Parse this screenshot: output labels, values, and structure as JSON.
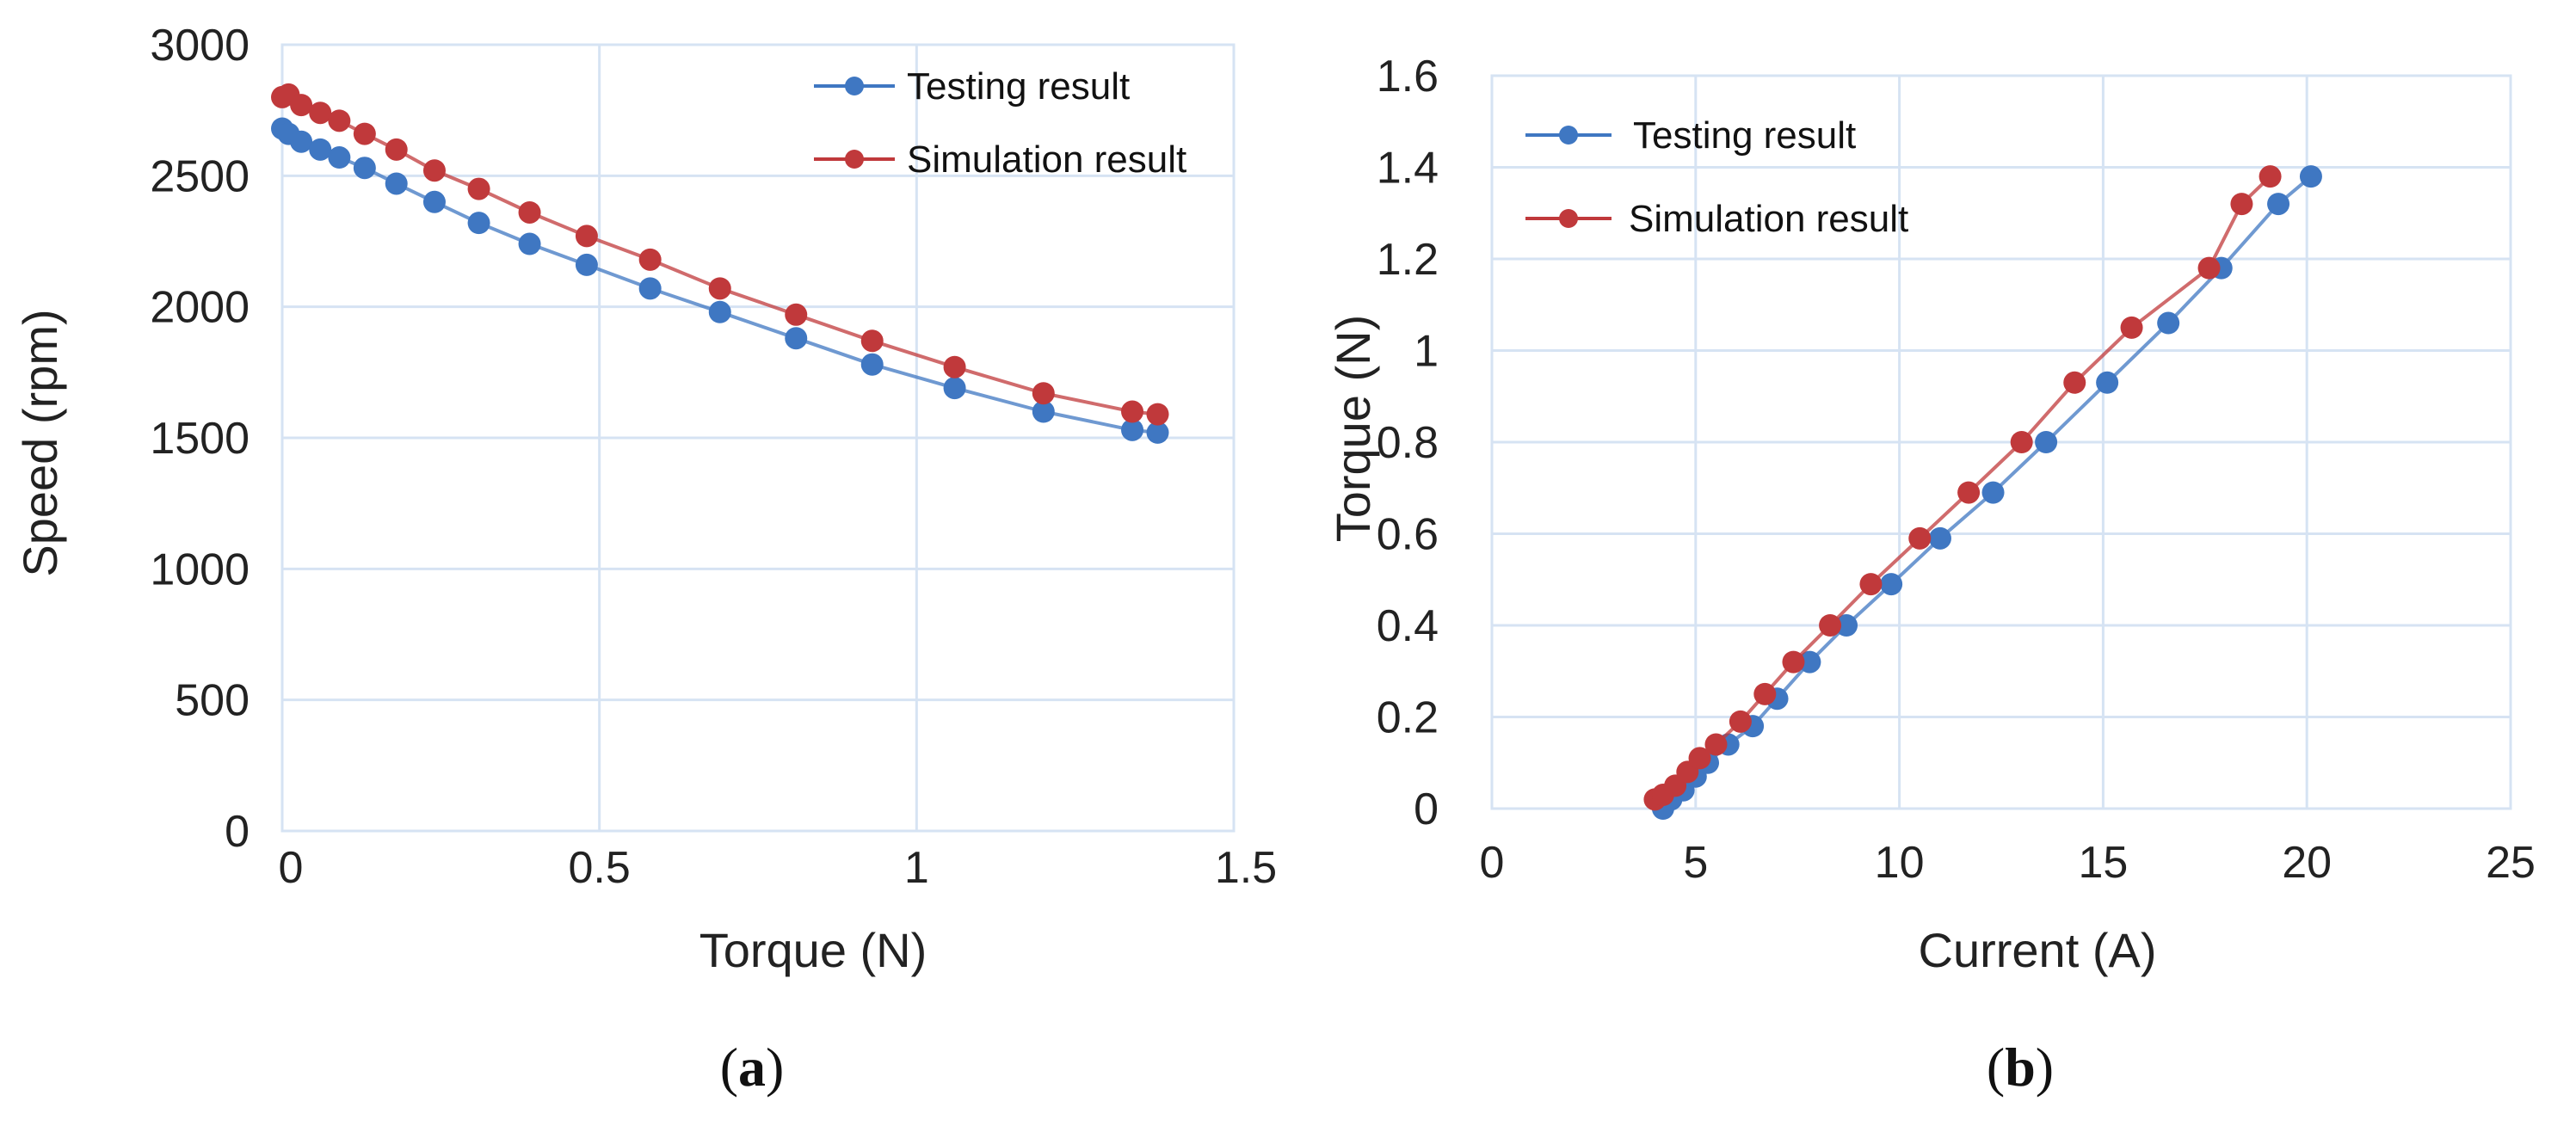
{
  "colors": {
    "testing": "#3f77c2",
    "simulation": "#c0393b",
    "grid": "#d6e3f3"
  },
  "chart_data": [
    {
      "type": "line",
      "panel": "a",
      "caption_letter": "a",
      "xlabel": "Torque (N)",
      "ylabel": "Speed  (rpm)",
      "xlim": [
        0,
        1.5
      ],
      "ylim": [
        0,
        3000
      ],
      "xticks": [
        "0",
        "0.5",
        "1",
        "1.5"
      ],
      "yticks": [
        "0",
        "500",
        "1000",
        "1500",
        "2000",
        "2500",
        "3000"
      ],
      "legend_position": "top-right",
      "grid": true,
      "series": [
        {
          "name": "Testing result",
          "x": [
            0.0,
            0.01,
            0.03,
            0.06,
            0.09,
            0.13,
            0.18,
            0.24,
            0.31,
            0.39,
            0.48,
            0.58,
            0.69,
            0.81,
            0.93,
            1.06,
            1.2,
            1.34,
            1.38
          ],
          "y": [
            2680,
            2660,
            2630,
            2600,
            2570,
            2530,
            2470,
            2400,
            2320,
            2240,
            2160,
            2070,
            1980,
            1880,
            1780,
            1690,
            1600,
            1530,
            1520
          ]
        },
        {
          "name": "Simulation result",
          "x": [
            0.0,
            0.01,
            0.03,
            0.06,
            0.09,
            0.13,
            0.18,
            0.24,
            0.31,
            0.39,
            0.48,
            0.58,
            0.69,
            0.81,
            0.93,
            1.06,
            1.2,
            1.34,
            1.38
          ],
          "y": [
            2800,
            2810,
            2770,
            2740,
            2710,
            2660,
            2600,
            2520,
            2450,
            2360,
            2270,
            2180,
            2070,
            1970,
            1870,
            1770,
            1670,
            1600,
            1590
          ]
        }
      ]
    },
    {
      "type": "line",
      "panel": "b",
      "caption_letter": "b",
      "xlabel": "Current (A)",
      "ylabel": "Torque (N)",
      "xlim": [
        0,
        25
      ],
      "ylim": [
        0,
        1.6
      ],
      "xticks": [
        "0",
        "5",
        "10",
        "15",
        "20",
        "25"
      ],
      "yticks": [
        "0",
        "0.2",
        "0.4",
        "0.6",
        "0.8",
        "1",
        "1.2",
        "1.4",
        "1.6"
      ],
      "legend_position": "top-left",
      "grid": true,
      "series": [
        {
          "name": "Testing result",
          "x": [
            4.2,
            4.4,
            4.7,
            5.0,
            5.3,
            5.8,
            6.4,
            7.0,
            7.8,
            8.7,
            9.8,
            11.0,
            12.3,
            13.6,
            15.1,
            16.6,
            17.9,
            19.3,
            20.1
          ],
          "y": [
            0.0,
            0.02,
            0.04,
            0.07,
            0.1,
            0.14,
            0.18,
            0.24,
            0.32,
            0.4,
            0.49,
            0.59,
            0.69,
            0.8,
            0.93,
            1.06,
            1.18,
            1.32,
            1.38
          ]
        },
        {
          "name": "Simulation result",
          "x": [
            4.0,
            4.2,
            4.5,
            4.8,
            5.1,
            5.5,
            6.1,
            6.7,
            7.4,
            8.3,
            9.3,
            10.5,
            11.7,
            13.0,
            14.3,
            15.7,
            17.6,
            18.4,
            19.1
          ],
          "y": [
            0.02,
            0.03,
            0.05,
            0.08,
            0.11,
            0.14,
            0.19,
            0.25,
            0.32,
            0.4,
            0.49,
            0.59,
            0.69,
            0.8,
            0.93,
            1.05,
            1.18,
            1.32,
            1.38
          ]
        }
      ]
    }
  ]
}
